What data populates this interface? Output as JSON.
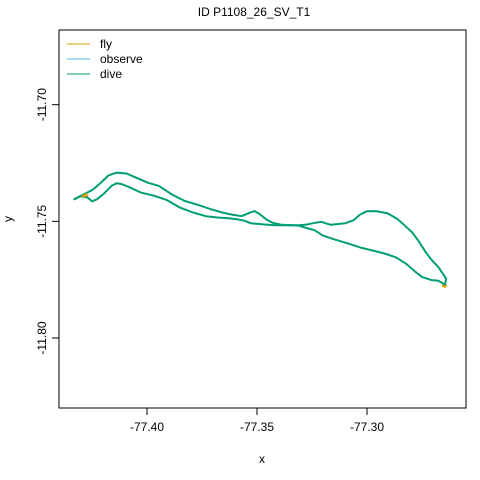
{
  "chart_data": {
    "type": "line",
    "title": "ID P1108_26_SV_T1",
    "xlabel": "x",
    "ylabel": "y",
    "xlim": [
      -77.44,
      -77.255
    ],
    "ylim": [
      -11.83,
      -11.668
    ],
    "x_ticks": [
      -77.4,
      -77.35,
      -77.3
    ],
    "x_tick_labels": [
      "-77.40",
      "-77.35",
      "-77.30"
    ],
    "y_ticks": [
      -11.7,
      -11.75,
      -11.8
    ],
    "y_tick_labels": [
      "-11.70",
      "-11.75",
      "-11.80"
    ],
    "legend_position": "top-left",
    "series": [
      {
        "name": "fly",
        "color": "#E69F00",
        "segments": [
          [
            [
              -77.4293,
              -11.7389
            ],
            [
              -77.4286,
              -11.7394
            ],
            [
              -77.4278,
              -11.7383
            ],
            [
              -77.4271,
              -11.7391
            ]
          ],
          [
            [
              -77.2656,
              -11.7776
            ],
            [
              -77.2647,
              -11.7781
            ],
            [
              -77.264,
              -11.7776
            ]
          ]
        ]
      },
      {
        "name": "observe",
        "color": "#56B4E9",
        "segments": []
      },
      {
        "name": "dive",
        "color": "#009E73",
        "segments": [
          [
            [
              -77.433,
              -11.7405
            ],
            [
              -77.4301,
              -11.7392
            ],
            [
              -77.4271,
              -11.7398
            ],
            [
              -77.4249,
              -11.7414
            ],
            [
              -77.4227,
              -11.7405
            ],
            [
              -77.4197,
              -11.7382
            ],
            [
              -77.416,
              -11.7347
            ],
            [
              -77.4138,
              -11.7337
            ],
            [
              -77.4116,
              -11.734
            ],
            [
              -77.4079,
              -11.7354
            ],
            [
              -77.4027,
              -11.7377
            ],
            [
              -77.3968,
              -11.739
            ],
            [
              -77.3909,
              -11.7409
            ],
            [
              -77.385,
              -11.7441
            ],
            [
              -77.3791,
              -11.7462
            ],
            [
              -77.3732,
              -11.7478
            ],
            [
              -77.3673,
              -11.7484
            ],
            [
              -77.3629,
              -11.7487
            ],
            [
              -77.3592,
              -11.7491
            ],
            [
              -77.3555,
              -11.7498
            ],
            [
              -77.3526,
              -11.7509
            ],
            [
              -77.3496,
              -11.7511
            ],
            [
              -77.3459,
              -11.7514
            ],
            [
              -77.3415,
              -11.7517
            ],
            [
              -77.3378,
              -11.7517
            ],
            [
              -77.3349,
              -11.7516
            ],
            [
              -77.3312,
              -11.7518
            ],
            [
              -77.3282,
              -11.7527
            ],
            [
              -77.3238,
              -11.7538
            ],
            [
              -77.3201,
              -11.7561
            ],
            [
              -77.3142,
              -11.7579
            ],
            [
              -77.3083,
              -11.7596
            ],
            [
              -77.3024,
              -11.7614
            ],
            [
              -77.2965,
              -11.7627
            ],
            [
              -77.2921,
              -11.7638
            ],
            [
              -77.2869,
              -11.7654
            ],
            [
              -77.2825,
              -11.768
            ],
            [
              -77.2788,
              -11.771
            ],
            [
              -77.2751,
              -11.7738
            ],
            [
              -77.2707,
              -11.7752
            ],
            [
              -77.2677,
              -11.7754
            ],
            [
              -77.2655,
              -11.7766
            ],
            [
              -77.2647,
              -11.7776
            ]
          ],
          [
            [
              -77.2647,
              -11.7776
            ],
            [
              -77.264,
              -11.7746
            ],
            [
              -77.2655,
              -11.7725
            ],
            [
              -77.2677,
              -11.7695
            ],
            [
              -77.2707,
              -11.7665
            ],
            [
              -77.2736,
              -11.7628
            ],
            [
              -77.2766,
              -11.7584
            ],
            [
              -77.2795,
              -11.7547
            ],
            [
              -77.2825,
              -11.7521
            ],
            [
              -77.2862,
              -11.749
            ],
            [
              -77.2906,
              -11.7466
            ],
            [
              -77.2958,
              -11.7456
            ],
            [
              -77.3002,
              -11.7457
            ],
            [
              -77.3032,
              -11.7471
            ],
            [
              -77.3061,
              -11.7495
            ],
            [
              -77.3098,
              -11.7508
            ],
            [
              -77.3135,
              -11.7512
            ],
            [
              -77.3164,
              -11.7515
            ],
            [
              -77.3186,
              -11.7509
            ],
            [
              -77.3208,
              -11.7502
            ],
            [
              -77.3245,
              -11.7508
            ],
            [
              -77.3275,
              -11.7514
            ],
            [
              -77.3304,
              -11.7516
            ],
            [
              -77.3349,
              -11.7517
            ],
            [
              -77.3393,
              -11.7514
            ],
            [
              -77.343,
              -11.7506
            ],
            [
              -77.3459,
              -11.7491
            ],
            [
              -77.3489,
              -11.7468
            ],
            [
              -77.3511,
              -11.7456
            ],
            [
              -77.3533,
              -11.7463
            ],
            [
              -77.357,
              -11.7478
            ],
            [
              -77.3614,
              -11.7471
            ],
            [
              -77.3658,
              -11.7462
            ],
            [
              -77.371,
              -11.7448
            ],
            [
              -77.3769,
              -11.7429
            ],
            [
              -77.3828,
              -11.7413
            ],
            [
              -77.3887,
              -11.7385
            ],
            [
              -77.3946,
              -11.7348
            ],
            [
              -77.3998,
              -11.7334
            ],
            [
              -77.4049,
              -11.7313
            ],
            [
              -77.4093,
              -11.7295
            ],
            [
              -77.4138,
              -11.7291
            ],
            [
              -77.4175,
              -11.7303
            ],
            [
              -77.4212,
              -11.7336
            ],
            [
              -77.4249,
              -11.7366
            ],
            [
              -77.4278,
              -11.738
            ],
            [
              -77.4308,
              -11.7394
            ],
            [
              -77.433,
              -11.7405
            ]
          ]
        ]
      }
    ]
  }
}
